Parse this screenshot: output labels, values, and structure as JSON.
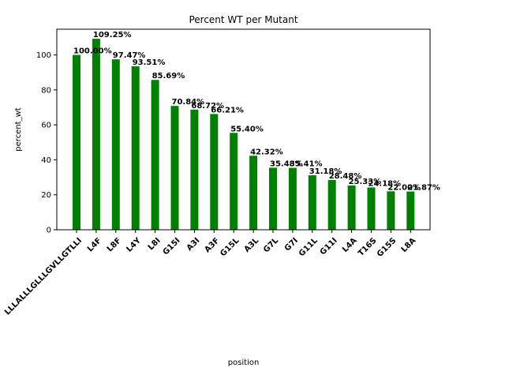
{
  "chart_data": {
    "type": "bar",
    "title": "Percent WT per Mutant",
    "xlabel": "position",
    "ylabel": "percent_wt",
    "categories": [
      "LLLALLLGLLLGVLLGTLLI",
      "L4F",
      "L8F",
      "L4Y",
      "L8I",
      "G15I",
      "A3I",
      "A3F",
      "G15L",
      "A3L",
      "G7L",
      "G7I",
      "G11L",
      "G11I",
      "L4A",
      "T16S",
      "G15S",
      "L8A"
    ],
    "values": [
      100.0,
      109.25,
      97.47,
      93.51,
      85.69,
      70.84,
      68.72,
      66.21,
      55.4,
      42.32,
      35.48,
      35.41,
      31.18,
      28.48,
      25.33,
      24.18,
      22.0,
      21.87
    ],
    "data_labels": [
      "100.00%",
      "109.25%",
      "97.47%",
      "93.51%",
      "85.69%",
      "70.84%",
      "68.72%",
      "66.21%",
      "55.40%",
      "42.32%",
      "35.48%",
      "35.41%",
      "31.18%",
      "28.48%",
      "25.33%",
      "24.18%",
      "22.00%",
      "21.87%"
    ],
    "y_ticks": [
      0,
      20,
      40,
      60,
      80,
      100
    ],
    "ylim": [
      0,
      114.7
    ],
    "bar_color": "#008000",
    "grid": false,
    "legend": "none"
  }
}
